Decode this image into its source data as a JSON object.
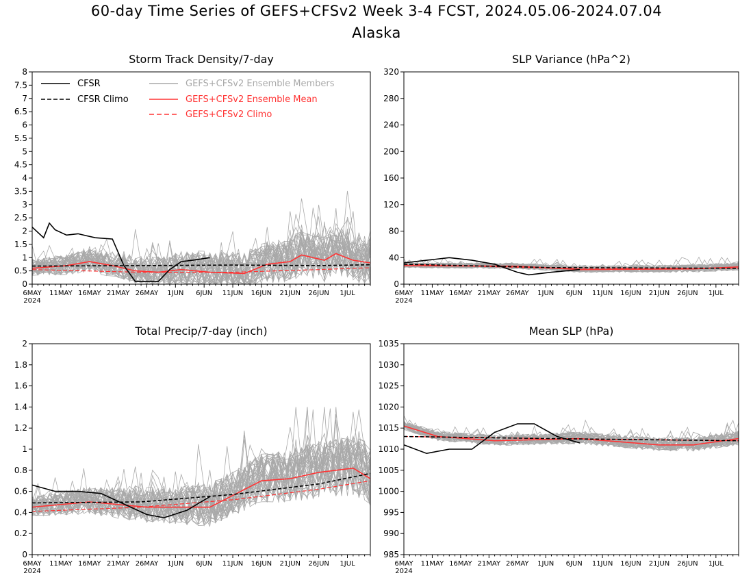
{
  "page": {
    "title": "60-day Time Series of GEFS+CFSv2 Week 3-4 FCST, 2024.05.06-2024.07.04",
    "region": "Alaska"
  },
  "colors": {
    "obs": "#000000",
    "members": "#a9a9a9",
    "mean": "#ff3333",
    "axis": "#000000"
  },
  "x_axis": {
    "ticks": [
      "6MAY",
      "11MAY",
      "16MAY",
      "21MAY",
      "26MAY",
      "1JUN",
      "6JUN",
      "11JUN",
      "16JUN",
      "21JUN",
      "26JUN",
      "1JUL"
    ],
    "year_label": "2024",
    "start": "2024-05-06",
    "end": "2024-07-04"
  },
  "legend": {
    "cfsr": "CFSR",
    "cfsr_climo": "CFSR Climo",
    "members": "GEFS+CFSv2 Ensemble Members",
    "mean": "GEFS+CFSv2 Ensemble Mean",
    "climo": "GEFS+CFSv2 Climo"
  },
  "chart_data": [
    {
      "type": "line",
      "title": "Storm Track Density/7-day",
      "ylim": [
        0,
        8
      ],
      "yticks": [
        "0",
        "0.5",
        "1",
        "1.5",
        "2",
        "2.5",
        "3",
        "3.5",
        "4",
        "4.5",
        "5",
        "5.5",
        "6",
        "6.5",
        "7",
        "7.5",
        "8"
      ],
      "legend_position": "top",
      "series": [
        {
          "name": "CFSR",
          "x": [
            "2024-05-06",
            "2024-05-08",
            "2024-05-09",
            "2024-05-10",
            "2024-05-12",
            "2024-05-14",
            "2024-05-17",
            "2024-05-20",
            "2024-05-22",
            "2024-05-24",
            "2024-05-26",
            "2024-05-28",
            "2024-05-30",
            "2024-06-01",
            "2024-06-03",
            "2024-06-06"
          ],
          "values": [
            2.15,
            1.75,
            2.3,
            2.05,
            1.85,
            1.9,
            1.75,
            1.7,
            0.7,
            0.1,
            0.1,
            0.1,
            0.55,
            0.85,
            0.9,
            1.0
          ]
        },
        {
          "name": "CFSR Climo",
          "x": [
            "2024-05-06",
            "2024-05-25",
            "2024-06-10",
            "2024-06-25",
            "2024-07-04"
          ],
          "values": [
            0.68,
            0.7,
            0.72,
            0.7,
            0.73
          ]
        },
        {
          "name": "GEFS+CFSv2 Ensemble Mean",
          "x": [
            "2024-05-06",
            "2024-05-12",
            "2024-05-16",
            "2024-05-20",
            "2024-05-24",
            "2024-05-28",
            "2024-06-01",
            "2024-06-06",
            "2024-06-12",
            "2024-06-16",
            "2024-06-20",
            "2024-06-22",
            "2024-06-26",
            "2024-06-28",
            "2024-07-01",
            "2024-07-04"
          ],
          "values": [
            0.6,
            0.7,
            0.85,
            0.7,
            0.5,
            0.45,
            0.55,
            0.45,
            0.4,
            0.75,
            0.85,
            1.1,
            0.9,
            1.15,
            0.9,
            0.8
          ]
        },
        {
          "name": "GEFS+CFSv2 Climo",
          "x": [
            "2024-05-06",
            "2024-05-25",
            "2024-06-10",
            "2024-06-25",
            "2024-07-04"
          ],
          "values": [
            0.55,
            0.45,
            0.45,
            0.55,
            0.62
          ]
        }
      ],
      "members_range": {
        "low": 0.0,
        "high": 4.2
      }
    },
    {
      "type": "line",
      "title": "SLP Variance (hPa^2)",
      "ylim": [
        0,
        320
      ],
      "yticks": [
        "0",
        "40",
        "80",
        "120",
        "160",
        "200",
        "240",
        "280",
        "320"
      ],
      "series": [
        {
          "name": "CFSR",
          "x": [
            "2024-05-06",
            "2024-05-10",
            "2024-05-14",
            "2024-05-18",
            "2024-05-22",
            "2024-05-26",
            "2024-05-28",
            "2024-06-01",
            "2024-06-06"
          ],
          "values": [
            32,
            36,
            40,
            36,
            30,
            18,
            14,
            18,
            22
          ]
        },
        {
          "name": "CFSR Climo",
          "x": [
            "2024-05-06",
            "2024-06-01",
            "2024-07-04"
          ],
          "values": [
            30,
            25,
            24
          ]
        },
        {
          "name": "GEFS+CFSv2 Ensemble Mean",
          "x": [
            "2024-05-06",
            "2024-05-26",
            "2024-06-06",
            "2024-06-26",
            "2024-07-04"
          ],
          "values": [
            28,
            27,
            22,
            23,
            26
          ]
        },
        {
          "name": "GEFS+CFSv2 Climo",
          "x": [
            "2024-05-06",
            "2024-06-01",
            "2024-07-04"
          ],
          "values": [
            30,
            24,
            24
          ]
        }
      ],
      "members_range": {
        "low": 5,
        "high": 78
      }
    },
    {
      "type": "line",
      "title": "Total Precip/7-day (inch)",
      "ylim": [
        0,
        2
      ],
      "yticks": [
        "0",
        "0.2",
        "0.4",
        "0.6",
        "0.8",
        "1",
        "1.2",
        "1.4",
        "1.6",
        "1.8",
        "2"
      ],
      "series": [
        {
          "name": "CFSR",
          "x": [
            "2024-05-06",
            "2024-05-10",
            "2024-05-14",
            "2024-05-18",
            "2024-05-22",
            "2024-05-26",
            "2024-05-29",
            "2024-06-02",
            "2024-06-06"
          ],
          "values": [
            0.66,
            0.6,
            0.6,
            0.58,
            0.48,
            0.38,
            0.35,
            0.42,
            0.55
          ]
        },
        {
          "name": "CFSR Climo",
          "x": [
            "2024-05-06",
            "2024-05-25",
            "2024-06-10",
            "2024-06-25",
            "2024-07-04"
          ],
          "values": [
            0.49,
            0.5,
            0.57,
            0.67,
            0.77
          ]
        },
        {
          "name": "GEFS+CFSv2 Ensemble Mean",
          "x": [
            "2024-05-06",
            "2024-05-16",
            "2024-05-26",
            "2024-06-06",
            "2024-06-15",
            "2024-06-20",
            "2024-06-25",
            "2024-07-01",
            "2024-07-04"
          ],
          "values": [
            0.45,
            0.5,
            0.45,
            0.45,
            0.7,
            0.72,
            0.78,
            0.82,
            0.72
          ]
        },
        {
          "name": "GEFS+CFSv2 Climo",
          "x": [
            "2024-05-06",
            "2024-05-25",
            "2024-06-10",
            "2024-06-25",
            "2024-07-04"
          ],
          "values": [
            0.41,
            0.45,
            0.52,
            0.62,
            0.7
          ]
        }
      ],
      "members_range": {
        "low": 0.15,
        "high": 1.4
      }
    },
    {
      "type": "line",
      "title": "Mean SLP (hPa)",
      "ylim": [
        985,
        1035
      ],
      "yticks": [
        "985",
        "990",
        "995",
        "1000",
        "1005",
        "1010",
        "1015",
        "1020",
        "1025",
        "1030",
        "1035"
      ],
      "series": [
        {
          "name": "CFSR",
          "x": [
            "2024-05-06",
            "2024-05-10",
            "2024-05-14",
            "2024-05-18",
            "2024-05-22",
            "2024-05-26",
            "2024-05-29",
            "2024-06-02",
            "2024-06-06"
          ],
          "values": [
            1011,
            1009,
            1010,
            1010,
            1014,
            1016,
            1016,
            1013,
            1011.5
          ]
        },
        {
          "name": "CFSR Climo",
          "x": [
            "2024-05-06",
            "2024-06-01",
            "2024-07-04"
          ],
          "values": [
            1013,
            1012.5,
            1012
          ]
        },
        {
          "name": "GEFS+CFSv2 Ensemble Mean",
          "x": [
            "2024-05-06",
            "2024-05-12",
            "2024-05-22",
            "2024-06-06",
            "2024-06-20",
            "2024-06-26",
            "2024-07-04"
          ],
          "values": [
            1015.5,
            1013,
            1012,
            1012.5,
            1011,
            1011,
            1012.5
          ]
        },
        {
          "name": "GEFS+CFSv2 Climo",
          "x": [
            "2024-05-06",
            "2024-06-01",
            "2024-07-04"
          ],
          "values": [
            1013,
            1012.5,
            1012
          ]
        }
      ],
      "members_range": {
        "low": 1004,
        "high": 1022
      }
    }
  ]
}
